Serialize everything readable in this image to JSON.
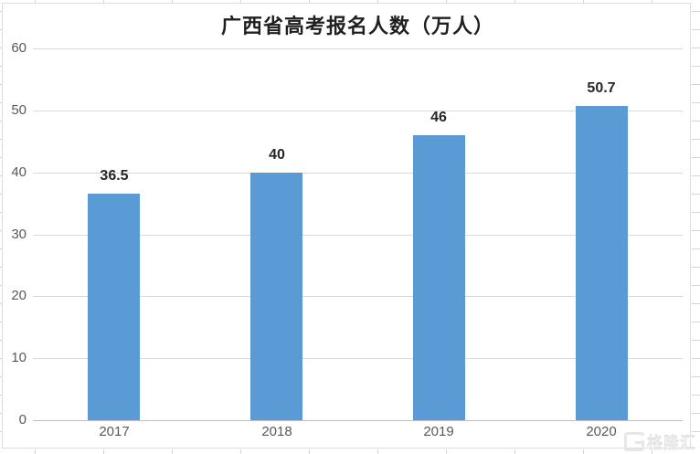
{
  "chart_data": {
    "type": "bar",
    "title": "广西省高考报名人数（万人）",
    "categories": [
      "2017",
      "2018",
      "2019",
      "2020"
    ],
    "values": [
      36.5,
      40,
      46,
      50.7
    ],
    "data_labels": [
      "36.5",
      "40",
      "46",
      "50.7"
    ],
    "xlabel": "",
    "ylabel": "",
    "ylim": [
      0,
      60
    ],
    "yticks": [
      0,
      10,
      20,
      30,
      40,
      50,
      60
    ],
    "grid": true,
    "legend": false,
    "bar_color": "#5B9BD5",
    "gridline_color": "#D9D9D9",
    "axis_line_color": "#BFBFBF",
    "tick_label_color": "#595959",
    "data_label_color": "#262626",
    "title_color": "#1F1F1F"
  },
  "watermark": {
    "logo_letter": "G",
    "text": "格隆汇"
  }
}
